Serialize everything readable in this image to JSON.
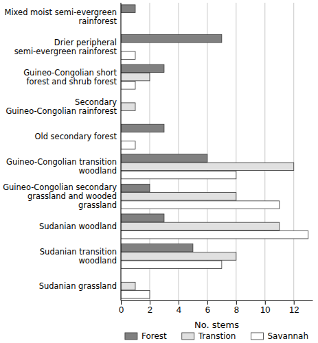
{
  "chart_data": {
    "type": "bar",
    "orientation": "horizontal",
    "x_label": "No. stems",
    "categories": [
      "Mixed moist semi-evergreen rainforest",
      "Drier peripheral semi-evergreen rainforest",
      "Guineo-Congolian short forest and shrub forest",
      "Secondary Guineo-Congolian rainforest",
      "Old secondary forest",
      "Guineo-Congolian transition woodland",
      "Guineo-Congolian secondary grassland and wooded grassland",
      "Sudanian woodland",
      "Sudanian transition woodland",
      "Sudanian grassland"
    ],
    "series": [
      {
        "name": "Forest",
        "color": "#808080",
        "values": [
          1,
          7,
          3,
          0,
          3,
          6,
          2,
          3,
          5,
          0
        ]
      },
      {
        "name": "Transtion",
        "color": "#e0e0e0",
        "values": [
          0,
          0,
          2,
          1,
          0,
          12,
          8,
          11,
          8,
          1
        ]
      },
      {
        "name": "Savannah",
        "color": "#ffffff",
        "values": [
          0,
          1,
          1,
          0,
          1,
          8,
          11,
          13,
          7,
          2
        ]
      }
    ],
    "xlim": [
      0,
      13.3
    ],
    "xticks": [
      0,
      2,
      4,
      6,
      8,
      10,
      12
    ],
    "grid": true,
    "legend": "bottom"
  }
}
